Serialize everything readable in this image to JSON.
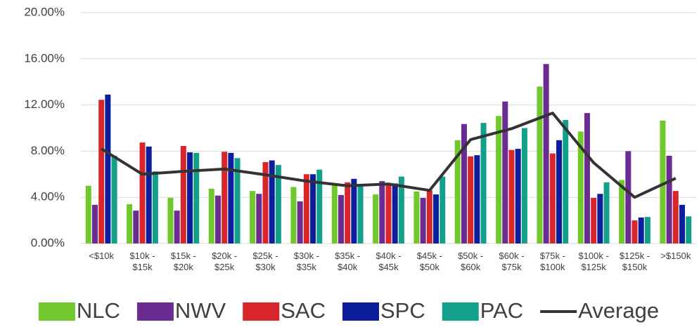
{
  "chart_data": {
    "type": "bar",
    "categories": [
      "<$10k",
      "$10k - $15k",
      "$15k - $20k",
      "$20k - $25k",
      "$25k - $30k",
      "$30k - $35k",
      "$35k - $40k",
      "$40k - $45k",
      "$45k - $50k",
      "$50k - $60k",
      "$60k - $75k",
      "$75k - $100k",
      "$100k - $125k",
      "$125k - $150k",
      ">$150k"
    ],
    "series": [
      {
        "name": "NLC",
        "color": "#70c82c",
        "values": [
          5.0,
          3.4,
          3.95,
          4.75,
          4.55,
          4.9,
          5.1,
          4.25,
          4.5,
          8.95,
          11.05,
          13.6,
          9.7,
          5.5,
          10.65
        ]
      },
      {
        "name": "NWV",
        "color": "#6a2c91",
        "values": [
          3.35,
          2.85,
          2.85,
          4.15,
          4.3,
          3.65,
          4.2,
          5.4,
          3.95,
          10.35,
          12.3,
          15.55,
          11.3,
          8.0,
          7.6
        ]
      },
      {
        "name": "SAC",
        "color": "#d9262b",
        "values": [
          12.45,
          8.75,
          8.45,
          7.95,
          7.05,
          6.0,
          5.3,
          5.2,
          4.6,
          7.55,
          8.1,
          7.8,
          3.95,
          2.0,
          4.55
        ]
      },
      {
        "name": "SPC",
        "color": "#0c1e9c",
        "values": [
          12.9,
          8.4,
          7.9,
          7.85,
          7.2,
          6.0,
          5.6,
          5.2,
          4.25,
          7.65,
          8.2,
          8.95,
          4.3,
          2.25,
          3.35
        ]
      },
      {
        "name": "PAC",
        "color": "#13a08a",
        "values": [
          7.6,
          6.25,
          7.85,
          7.4,
          6.8,
          6.4,
          5.1,
          5.8,
          5.8,
          10.45,
          10.0,
          10.7,
          5.3,
          2.3,
          2.35
        ]
      },
      {
        "name": "Average",
        "type": "line",
        "color": "#333333",
        "values": [
          8.2,
          6.0,
          6.25,
          6.45,
          5.95,
          5.4,
          5.0,
          5.15,
          4.6,
          9.0,
          9.95,
          11.3,
          7.0,
          4.0,
          5.65
        ]
      }
    ],
    "ylim": [
      0,
      20
    ],
    "yticks": [
      {
        "value": 0,
        "label": "0.00%"
      },
      {
        "value": 4,
        "label": "4.00%"
      },
      {
        "value": 8,
        "label": "8.00%"
      },
      {
        "value": 12,
        "label": "12.00%"
      },
      {
        "value": 16,
        "label": "16.00%"
      },
      {
        "value": 20,
        "label": "20.00%"
      }
    ],
    "grid": true,
    "legend": "bottom"
  }
}
